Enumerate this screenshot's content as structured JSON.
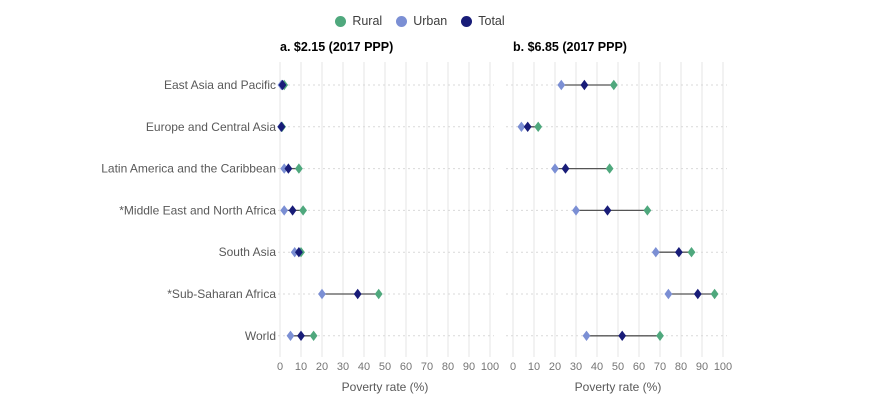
{
  "legend": {
    "items": [
      {
        "label": "Rural",
        "color": "#4FA87D"
      },
      {
        "label": "Urban",
        "color": "#7B8FD4"
      },
      {
        "label": "Total",
        "color": "#181C78"
      }
    ]
  },
  "colors": {
    "rural": "#4FA87D",
    "urban": "#7B8FD4",
    "total": "#181C78",
    "connector": "#555555",
    "grid_vertical": "#e4e4e4",
    "grid_dashed": "#d9d9d9",
    "tick_text": "#757575",
    "category_text": "#595959",
    "axis_title_text": "#595959"
  },
  "chart_data": {
    "type": "scatter",
    "subtype": "dumbbell-dot-plot",
    "categories": [
      "East Asia and Pacific",
      "Europe and Central Asia",
      "Latin America and the Caribbean",
      "*Middle East and North Africa",
      "South Asia",
      "*Sub-Saharan Africa",
      "World"
    ],
    "xlabel": "Poverty rate (%)",
    "xlim": [
      0,
      100
    ],
    "xticks": [
      0,
      10,
      20,
      30,
      40,
      50,
      60,
      70,
      80,
      90,
      100
    ],
    "grid": true,
    "legend_position": "top",
    "legend_entries": [
      "Rural",
      "Urban",
      "Total"
    ],
    "panels": [
      {
        "title": "a. $2.15 (2017 PPP)",
        "series": [
          {
            "name": "Rural",
            "values": [
              2,
              1,
              9,
              11,
              10,
              47,
              16
            ]
          },
          {
            "name": "Urban",
            "values": [
              0.7,
              0.5,
              2,
              2,
              7,
              20,
              5
            ]
          },
          {
            "name": "Total",
            "values": [
              1.2,
              0.7,
              4,
              6,
              9,
              37,
              10
            ]
          }
        ]
      },
      {
        "title": "b. $6.85 (2017 PPP)",
        "series": [
          {
            "name": "Rural",
            "values": [
              48,
              12,
              46,
              64,
              85,
              96,
              70
            ]
          },
          {
            "name": "Urban",
            "values": [
              23,
              4,
              20,
              30,
              68,
              74,
              35
            ]
          },
          {
            "name": "Total",
            "values": [
              34,
              7,
              25,
              45,
              79,
              88,
              52
            ]
          }
        ]
      }
    ]
  }
}
